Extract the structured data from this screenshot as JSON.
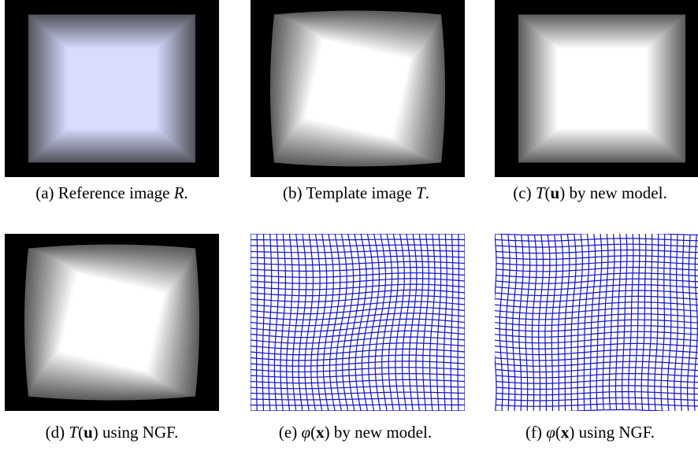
{
  "figure": {
    "panels": [
      {
        "id": "a",
        "kind": "square",
        "tint": "#d8dcff",
        "caption": {
          "prefix": "(a) Reference image ",
          "math": "R",
          "suffix": "."
        }
      },
      {
        "id": "b",
        "kind": "warped",
        "tint": "#ffffff",
        "caption": {
          "prefix": "(b) Template image ",
          "math": "T",
          "suffix": "."
        }
      },
      {
        "id": "c",
        "kind": "square",
        "tint": "#ffffff",
        "caption": {
          "prefix": "(c) ",
          "math": "T",
          "paren_open": "(",
          "bold": "u",
          "paren_close": ")",
          "suffix": " by new model."
        }
      },
      {
        "id": "d",
        "kind": "warped",
        "tint": "#ffffff",
        "caption": {
          "prefix": "(d) ",
          "math": "T",
          "paren_open": "(",
          "bold": "u",
          "paren_close": ")",
          "suffix": "  using NGF."
        }
      },
      {
        "id": "e",
        "kind": "grid",
        "grid_color": "#1111cc",
        "caption": {
          "prefix": "(e) ",
          "math": "φ",
          "paren_open": "(",
          "bold": "x",
          "paren_close": ")",
          "suffix": " by new model."
        }
      },
      {
        "id": "f",
        "kind": "grid",
        "grid_color": "#1111cc",
        "caption": {
          "prefix": "(f) ",
          "math": "φ",
          "paren_open": "(",
          "bold": "x",
          "paren_close": ")",
          "suffix": " using NGF."
        }
      }
    ]
  }
}
